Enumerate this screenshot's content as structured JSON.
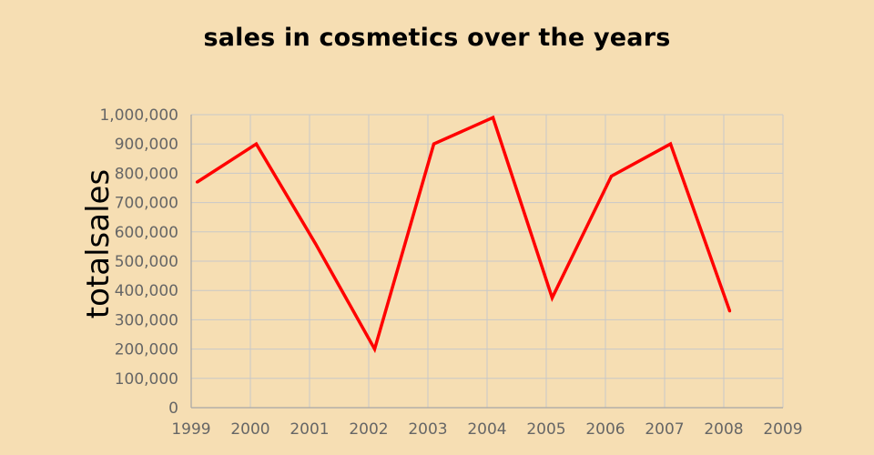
{
  "chart_data": {
    "type": "line",
    "title": "sales in cosmetics over the years",
    "xlabel": "",
    "ylabel": "totalsales",
    "x_ticks": [
      "1999",
      "2000",
      "2001",
      "2002",
      "2003",
      "2004",
      "2005",
      "2006",
      "2007",
      "2008",
      "2009"
    ],
    "y_ticks": [
      "0",
      "100,000",
      "200,000",
      "300,000",
      "400,000",
      "500,000",
      "600,000",
      "700,000",
      "800,000",
      "900,000",
      "1,000,000"
    ],
    "xlim": [
      1999,
      2009
    ],
    "ylim": [
      0,
      1000000
    ],
    "grid": true,
    "legend": "none",
    "series": [
      {
        "color": "#ff0000",
        "points": [
          {
            "x": 1999.1,
            "y": 770000
          },
          {
            "x": 2000.1,
            "y": 900000
          },
          {
            "x": 2001.1,
            "y": 560000
          },
          {
            "x": 2002.1,
            "y": 200000
          },
          {
            "x": 2003.1,
            "y": 900000
          },
          {
            "x": 2004.1,
            "y": 990000
          },
          {
            "x": 2005.1,
            "y": 375000
          },
          {
            "x": 2006.1,
            "y": 790000
          },
          {
            "x": 2007.1,
            "y": 900000
          },
          {
            "x": 2008.1,
            "y": 330000
          }
        ]
      }
    ]
  }
}
